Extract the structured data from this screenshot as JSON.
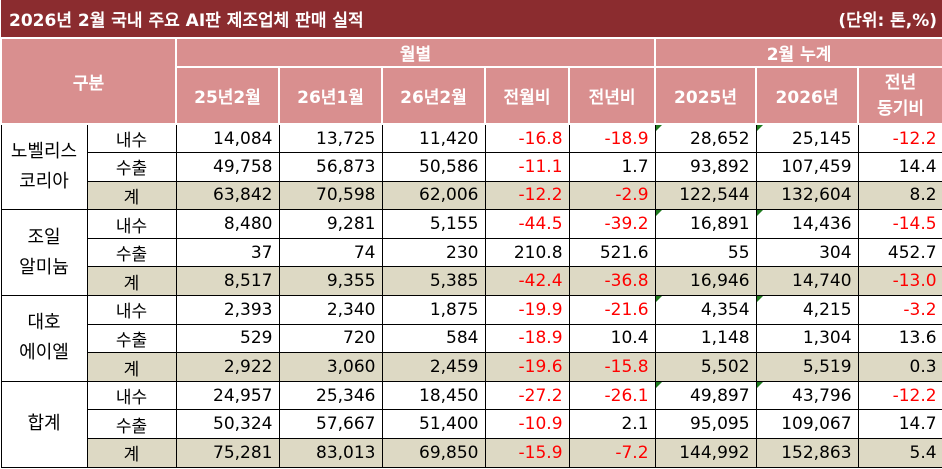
{
  "title": "2026년 2월 국내 주요 AI판  제조업체 판매 실적",
  "unit": "(단위: 톤,%)",
  "header": {
    "category": "구분",
    "monthly": "월별",
    "cumulative": "2월 누계",
    "columns": [
      "25년2월",
      "26년1월",
      "26년2월",
      "전월비",
      "전년비",
      "2025년",
      "2026년"
    ],
    "yoy_line1": "전년",
    "yoy_line2": "동기비"
  },
  "groups": [
    {
      "name_line1": "노벨리스",
      "name_line2": "코리아",
      "rows": [
        {
          "kind": "내수",
          "values": [
            "14,084",
            "13,725",
            "11,420",
            "-16.8",
            "-18.9",
            "28,652",
            "25,145",
            "-12.2"
          ]
        },
        {
          "kind": "수출",
          "values": [
            "49,758",
            "56,873",
            "50,586",
            "-11.1",
            "1.7",
            "93,892",
            "107,459",
            "14.4"
          ]
        },
        {
          "kind": "계",
          "values": [
            "63,842",
            "70,598",
            "62,006",
            "-12.2",
            "-2.9",
            "122,544",
            "132,604",
            "8.2"
          ]
        }
      ]
    },
    {
      "name_line1": "조일",
      "name_line2": "알미늄",
      "rows": [
        {
          "kind": "내수",
          "values": [
            "8,480",
            "9,281",
            "5,155",
            "-44.5",
            "-39.2",
            "16,891",
            "14,436",
            "-14.5"
          ]
        },
        {
          "kind": "수출",
          "values": [
            "37",
            "74",
            "230",
            "210.8",
            "521.6",
            "55",
            "304",
            "452.7"
          ]
        },
        {
          "kind": "계",
          "values": [
            "8,517",
            "9,355",
            "5,385",
            "-42.4",
            "-36.8",
            "16,946",
            "14,740",
            "-13.0"
          ]
        }
      ]
    },
    {
      "name_line1": "대호",
      "name_line2": "에이엘",
      "rows": [
        {
          "kind": "내수",
          "values": [
            "2,393",
            "2,340",
            "1,875",
            "-19.9",
            "-21.6",
            "4,354",
            "4,215",
            "-3.2"
          ]
        },
        {
          "kind": "수출",
          "values": [
            "529",
            "720",
            "584",
            "-18.9",
            "10.4",
            "1,148",
            "1,304",
            "13.6"
          ]
        },
        {
          "kind": "계",
          "values": [
            "2,922",
            "3,060",
            "2,459",
            "-19.6",
            "-15.8",
            "5,502",
            "5,519",
            "0.3"
          ]
        }
      ]
    },
    {
      "name_line1": "합계",
      "name_line2": "",
      "rows": [
        {
          "kind": "내수",
          "values": [
            "24,957",
            "25,346",
            "18,450",
            "-27.2",
            "-26.1",
            "49,897",
            "43,796",
            "-12.2"
          ]
        },
        {
          "kind": "수출",
          "values": [
            "50,324",
            "57,667",
            "51,400",
            "-10.9",
            "2.1",
            "95,095",
            "109,067",
            "14.7"
          ]
        },
        {
          "kind": "계",
          "values": [
            "75,281",
            "83,013",
            "69,850",
            "-15.9",
            "-7.2",
            "144,992",
            "152,863",
            "5.4"
          ]
        }
      ]
    }
  ],
  "colors": {
    "title_bg": "#8b2c2f",
    "header_bg": "#d98f8f",
    "subtotal_bg": "#ddd9c4",
    "negative": "#ff0000"
  }
}
